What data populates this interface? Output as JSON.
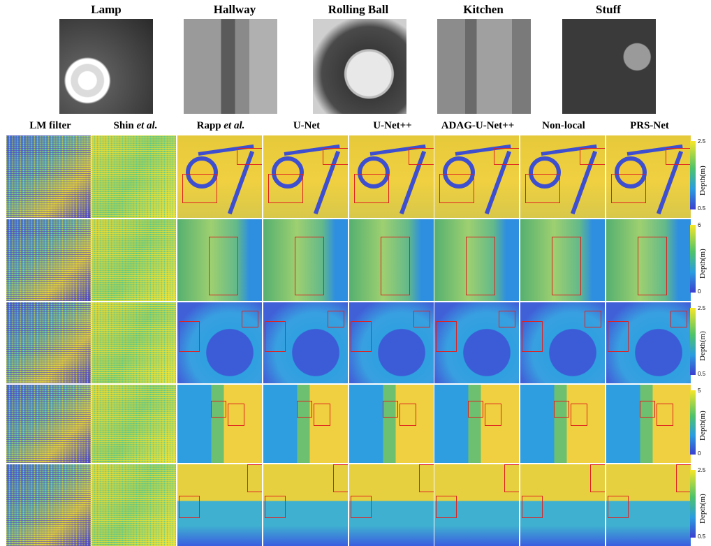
{
  "scenes": [
    "Lamp",
    "Hallway",
    "Rolling Ball",
    "Kitchen",
    "Stuff"
  ],
  "methods": [
    {
      "name": "LM filter",
      "suffix": ""
    },
    {
      "name": "Shin ",
      "suffix": "et al."
    },
    {
      "name": "Rapp ",
      "suffix": "et al."
    },
    {
      "name": "U-Net",
      "suffix": ""
    },
    {
      "name": "U-Net++",
      "suffix": ""
    },
    {
      "name": "ADAG-U-Net++",
      "suffix": ""
    },
    {
      "name": "Non-local",
      "suffix": ""
    },
    {
      "name": "PRS-Net",
      "suffix": ""
    }
  ],
  "colorbars": [
    {
      "label": "Depth(m)",
      "max": "2.5",
      "min": "0.5"
    },
    {
      "label": "Depth(m)",
      "max": "6",
      "min": "0"
    },
    {
      "label": "Depth(m)",
      "max": "2.5",
      "min": "0.5"
    },
    {
      "label": "Depth(m)",
      "max": "5",
      "min": "0"
    },
    {
      "label": "Depth(m)",
      "max": "2.5",
      "min": "0.5"
    }
  ],
  "colors": {
    "roi_box": "#e02020",
    "colormap_high": "#f7e627",
    "colormap_low": "#3b3fcf"
  }
}
